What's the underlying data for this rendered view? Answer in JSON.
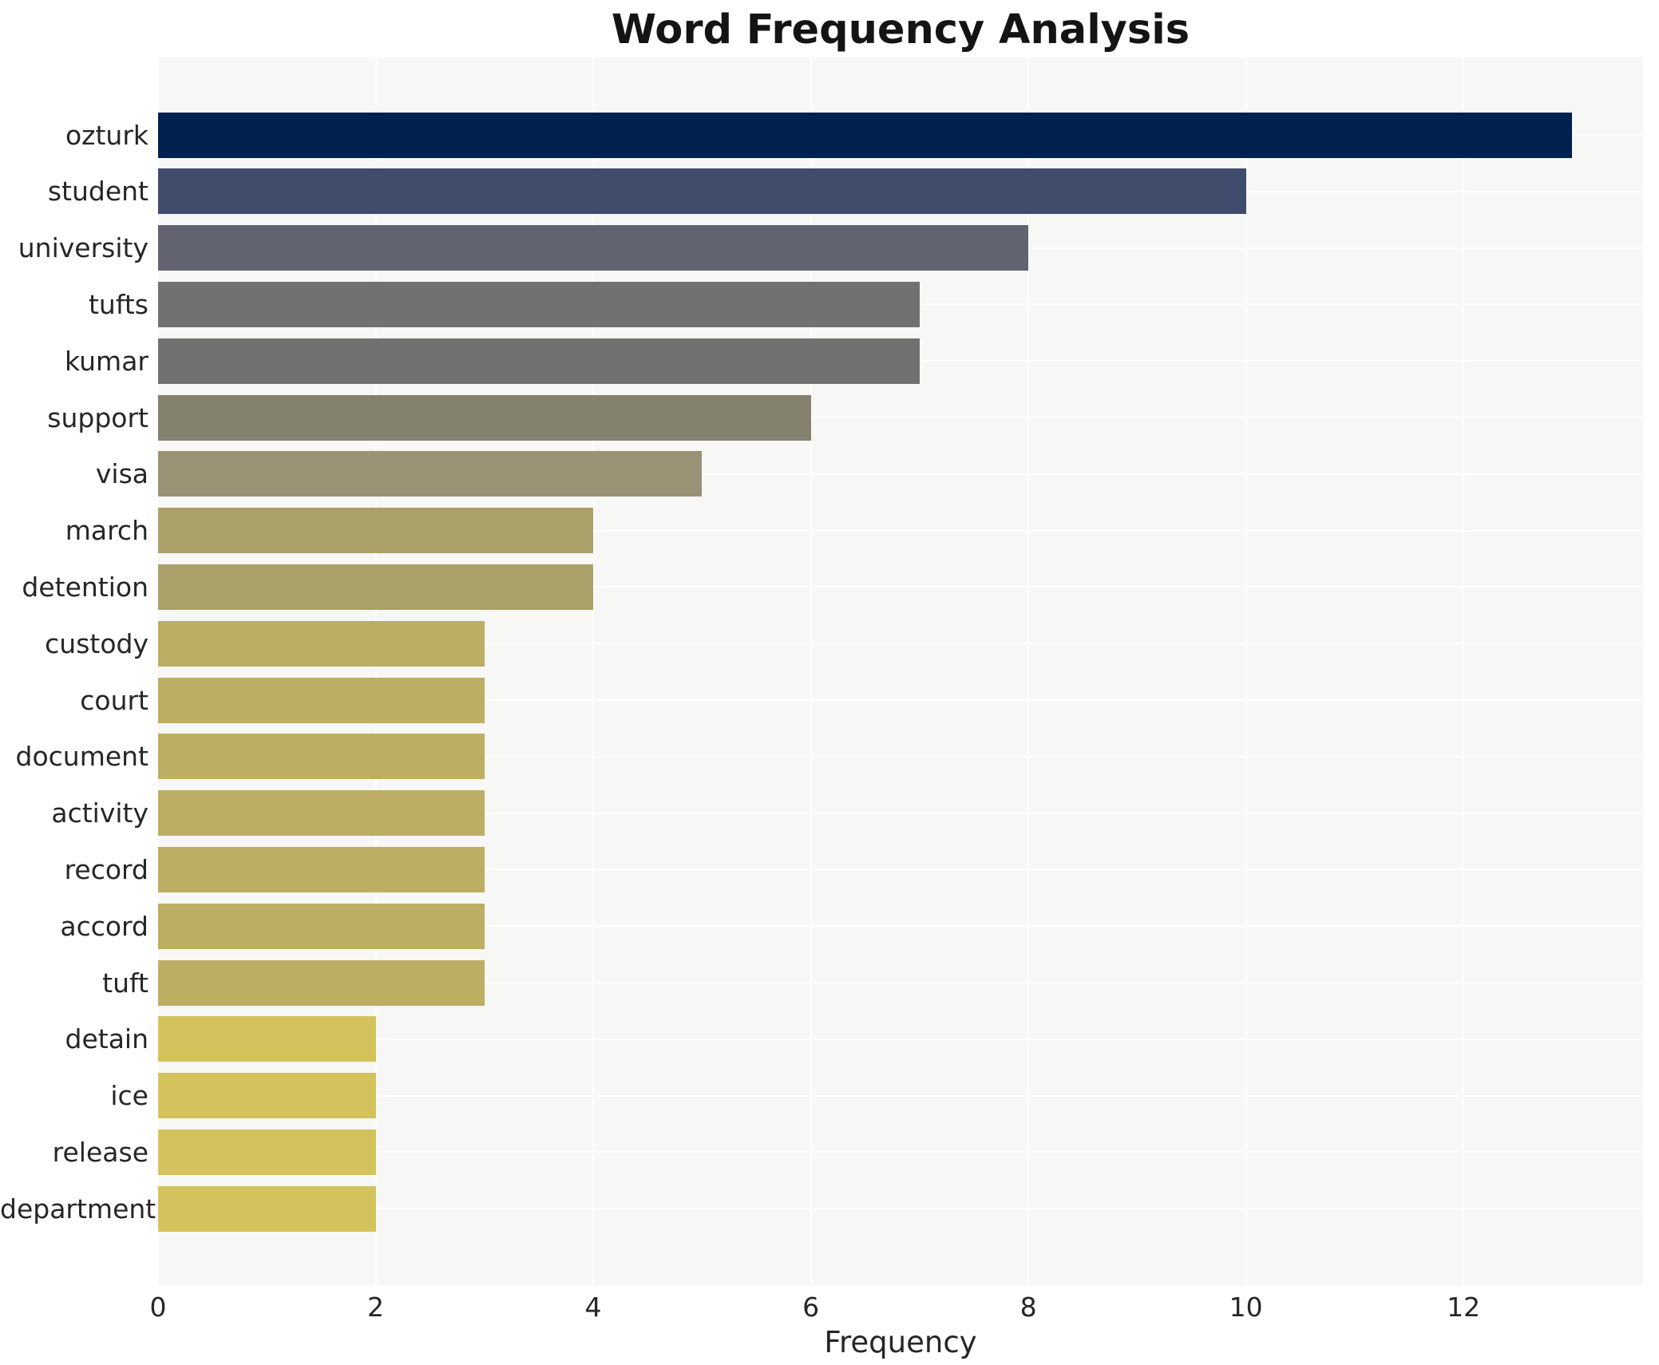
{
  "title": "Word Frequency Analysis",
  "chart_data": {
    "type": "bar",
    "orientation": "horizontal",
    "title": "Word Frequency Analysis",
    "xlabel": "Frequency",
    "ylabel": "",
    "categories": [
      "ozturk",
      "student",
      "university",
      "tufts",
      "kumar",
      "support",
      "visa",
      "march",
      "detention",
      "custody",
      "court",
      "document",
      "activity",
      "record",
      "accord",
      "tuft",
      "detain",
      "ice",
      "release",
      "department"
    ],
    "values": [
      13,
      10,
      8,
      7,
      7,
      6,
      5,
      4,
      4,
      3,
      3,
      3,
      3,
      3,
      3,
      3,
      2,
      2,
      2,
      2
    ],
    "bar_colors": [
      "#00214d",
      "#3f4c6b",
      "#616470",
      "#717171",
      "#717171",
      "#84816f",
      "#9a9274",
      "#aaa06a",
      "#aaa06a",
      "#bcae62",
      "#bcae62",
      "#bcae62",
      "#bcae62",
      "#bcae62",
      "#bcae62",
      "#bcae62",
      "#d4c35c",
      "#d4c35c",
      "#d4c35c",
      "#d4c35c"
    ],
    "xticks": [
      0,
      2,
      4,
      6,
      8,
      10,
      12
    ],
    "xlim": [
      0,
      13.65
    ],
    "grid": true,
    "legend": "none",
    "plot_bg_color": "#f7f7f5",
    "grid_color": "#ffffff",
    "text_color": "#262626"
  }
}
